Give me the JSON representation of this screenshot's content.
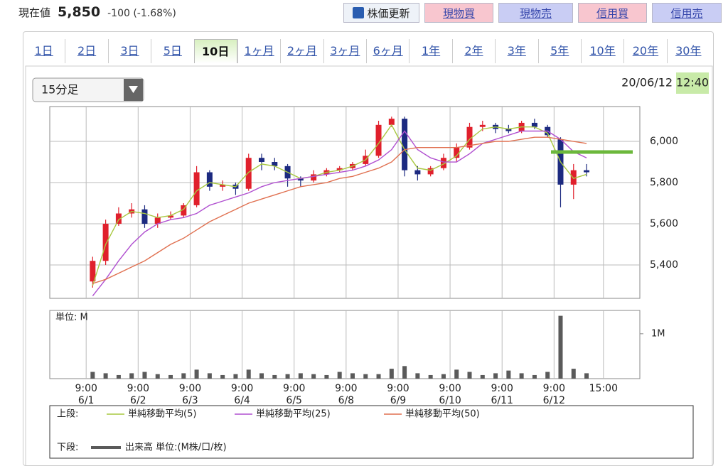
{
  "header": {
    "price_label": "現在値",
    "price": "5,850",
    "change": "-100 (-1.68%)"
  },
  "buttons": [
    {
      "label": "株価更新",
      "color": "#eef2f8"
    },
    {
      "label": "現物買",
      "color": "#f8c6cf"
    },
    {
      "label": "現物売",
      "color": "#c9cdf4"
    },
    {
      "label": "信用買",
      "color": "#f8c6cf"
    },
    {
      "label": "信用売",
      "color": "#c9cdf4"
    }
  ],
  "tabs": [
    "1日",
    "2日",
    "3日",
    "5日",
    "10日",
    "1ヶ月",
    "2ヶ月",
    "3ヶ月",
    "6ヶ月",
    "1年",
    "2年",
    "3年",
    "5年",
    "10年",
    "20年",
    "30年"
  ],
  "active_tab": 4,
  "dropdown": "15分足",
  "timestamp": {
    "date": "20/06/12",
    "time": "12:40"
  },
  "legend": {
    "upper": "上段:",
    "lower": "下段:"
  },
  "chart_data": [
    {
      "type": "candlestick",
      "x": [
        2.5,
        7.5,
        12.5,
        17.5,
        22.5,
        27.5,
        32.5,
        37.5,
        42.5,
        47.5,
        52.5,
        57.5,
        62.5,
        67.5,
        72.5,
        77.5,
        82.5,
        87.5,
        92.5,
        97.5,
        102.5,
        107.5,
        112.5,
        117.5,
        122.5,
        127.5,
        132.5,
        137.5,
        142.5,
        147.5,
        152.5,
        157.5,
        162.5,
        167.5,
        172.5,
        177.5,
        182.5,
        187.5,
        192.5
      ],
      "xlim": [
        -14,
        213
      ],
      "xticks": [
        {
          "value": 0,
          "label": "9:00"
        },
        {
          "value": 20,
          "label": "9:00"
        },
        {
          "value": 40,
          "label": "9:00"
        },
        {
          "value": 60,
          "label": "9:00"
        },
        {
          "value": 80,
          "label": "9:00"
        },
        {
          "value": 100,
          "label": "9:00"
        },
        {
          "value": 120,
          "label": "9:00"
        },
        {
          "value": 140,
          "label": "9:00"
        },
        {
          "value": 160,
          "label": "9:00"
        },
        {
          "value": 180,
          "label": "9:00"
        },
        {
          "value": 199,
          "label": "15:00"
        }
      ],
      "xtick_dates": [
        "6/1",
        "6/2",
        "6/3",
        "6/4",
        "6/5",
        "6/8",
        "6/9",
        "6/10",
        "6/11",
        "6/12",
        null
      ],
      "ylim": [
        5238,
        6169
      ],
      "yticks": [
        {
          "value": 5400,
          "label": "5,400"
        },
        {
          "value": 5600,
          "label": "5,600"
        },
        {
          "value": 5800,
          "label": "5,800"
        },
        {
          "value": 6000,
          "label": "6,000"
        }
      ],
      "grid": true,
      "up_color": "#e0202c",
      "down_color": "#1c2a80",
      "open": [
        5320,
        5420,
        5600,
        5650,
        5670,
        5600,
        5630,
        5640,
        5690,
        5850,
        5780,
        5790,
        5770,
        5920,
        5900,
        5880,
        5820,
        5810,
        5840,
        5860,
        5870,
        5890,
        5930,
        6080,
        6110,
        5860,
        5840,
        5870,
        5920,
        5970,
        6070,
        6080,
        6060,
        6050,
        6090,
        6070,
        6010,
        5790,
        5860
      ],
      "high": [
        5440,
        5620,
        5680,
        5700,
        5690,
        5650,
        5660,
        5700,
        5880,
        5860,
        5810,
        5800,
        5940,
        5940,
        5920,
        5890,
        5830,
        5860,
        5870,
        5880,
        5900,
        5960,
        6100,
        6120,
        6120,
        5880,
        5880,
        5940,
        5990,
        6090,
        6100,
        6090,
        6080,
        6100,
        6110,
        6080,
        6020,
        5890,
        5890
      ],
      "low": [
        5290,
        5400,
        5590,
        5630,
        5580,
        5580,
        5620,
        5630,
        5680,
        5760,
        5760,
        5740,
        5760,
        5860,
        5860,
        5780,
        5780,
        5800,
        5830,
        5850,
        5860,
        5880,
        5920,
        6070,
        5830,
        5810,
        5830,
        5860,
        5900,
        5960,
        6050,
        6040,
        6040,
        6040,
        6060,
        6020,
        5680,
        5720,
        5830
      ],
      "close": [
        5420,
        5600,
        5650,
        5670,
        5600,
        5630,
        5640,
        5690,
        5850,
        5780,
        5790,
        5770,
        5920,
        5900,
        5880,
        5820,
        5810,
        5840,
        5860,
        5870,
        5890,
        5930,
        6080,
        6110,
        5860,
        5840,
        5870,
        5920,
        5970,
        6070,
        6080,
        6060,
        6050,
        6090,
        6070,
        6030,
        5790,
        5860,
        5850
      ],
      "series": [
        {
          "name": "単純移動平均(5)",
          "color": "#a8c840",
          "values": [
            5300,
            5500,
            5620,
            5660,
            5650,
            5630,
            5640,
            5670,
            5760,
            5800,
            5790,
            5780,
            5850,
            5890,
            5880,
            5850,
            5820,
            5830,
            5850,
            5860,
            5880,
            5910,
            5990,
            6080,
            5960,
            5870,
            5860,
            5890,
            5930,
            6010,
            6060,
            6070,
            6060,
            6070,
            6070,
            6040,
            5900,
            5820,
            5840
          ]
        },
        {
          "name": "単純移動平均(25)",
          "color": "#b050d0",
          "values": [
            5250,
            5330,
            5420,
            5500,
            5560,
            5600,
            5620,
            5630,
            5650,
            5690,
            5710,
            5730,
            5750,
            5780,
            5800,
            5810,
            5820,
            5830,
            5840,
            5850,
            5860,
            5880,
            5910,
            5960,
            6050,
            5960,
            5920,
            5900,
            5900,
            5940,
            5990,
            6010,
            6030,
            6050,
            6050,
            6050,
            6010,
            5950,
            5920
          ]
        },
        {
          "name": "単純移動平均(50)",
          "color": "#e07050",
          "values": [
            5310,
            5330,
            5360,
            5390,
            5420,
            5460,
            5500,
            5530,
            5570,
            5610,
            5640,
            5670,
            5700,
            5720,
            5740,
            5760,
            5780,
            5790,
            5800,
            5820,
            5830,
            5850,
            5870,
            5900,
            5960,
            5970,
            5970,
            5970,
            5970,
            5980,
            5990,
            6000,
            6000,
            6010,
            6020,
            6020,
            6010,
            6000,
            5990
          ]
        }
      ]
    },
    {
      "type": "bar",
      "title": "単位: M",
      "name": "出来高 単位:(M株/口/枚)",
      "color": "#5a5a5a",
      "ylim": [
        0,
        1.52
      ],
      "yticks": [
        {
          "value": 1,
          "label": "1M"
        }
      ],
      "values": [
        0.15,
        0.12,
        0.08,
        0.12,
        0.15,
        0.1,
        0.08,
        0.12,
        0.2,
        0.12,
        0.08,
        0.1,
        0.2,
        0.12,
        0.08,
        0.1,
        0.12,
        0.1,
        0.08,
        0.15,
        0.12,
        0.1,
        0.1,
        0.22,
        0.28,
        0.12,
        0.08,
        0.1,
        0.2,
        0.15,
        0.08,
        0.12,
        0.18,
        0.12,
        0.08,
        0.15,
        1.4,
        0.22,
        0.12
      ]
    }
  ]
}
